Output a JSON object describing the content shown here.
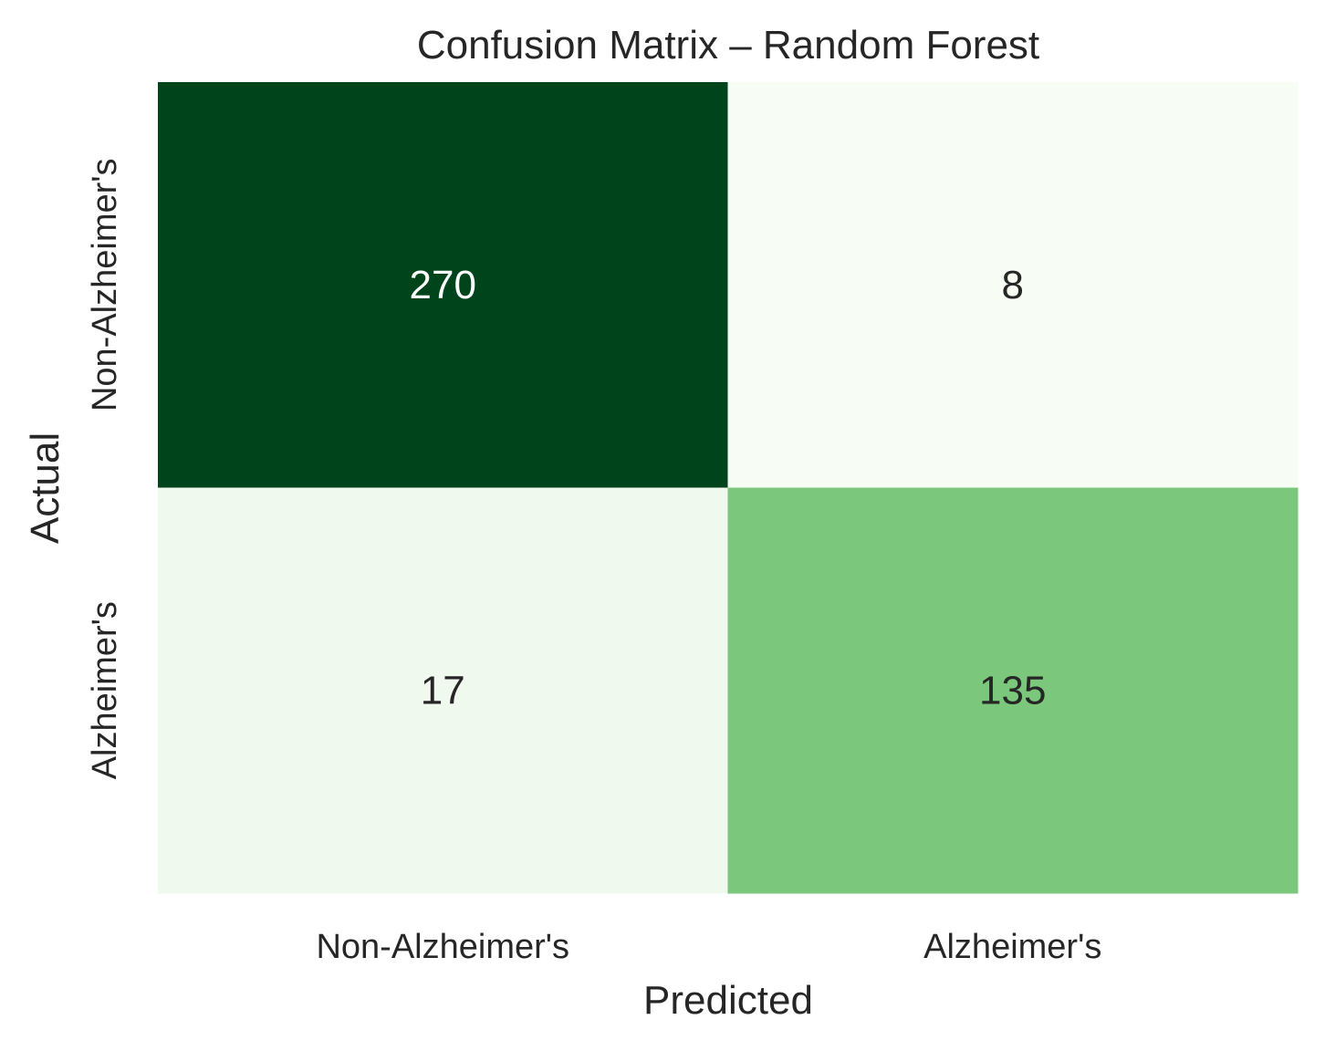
{
  "chart_data": {
    "type": "heatmap",
    "title": "Confusion Matrix – Random Forest",
    "xlabel": "Predicted",
    "ylabel": "Actual",
    "x_categories": [
      "Non-Alzheimer's",
      "Alzheimer's"
    ],
    "y_categories": [
      "Non-Alzheimer's",
      "Alzheimer's"
    ],
    "values": [
      [
        270,
        8
      ],
      [
        17,
        135
      ]
    ],
    "colormap": "Greens",
    "colorbar": false,
    "grid": false,
    "cell_colors": [
      [
        "#00441b",
        "#f7fcf5"
      ],
      [
        "#f0f9ed",
        "#7bc77c"
      ]
    ],
    "text_colors": [
      [
        "#ffffff",
        "#262626"
      ],
      [
        "#262626",
        "#262626"
      ]
    ]
  }
}
